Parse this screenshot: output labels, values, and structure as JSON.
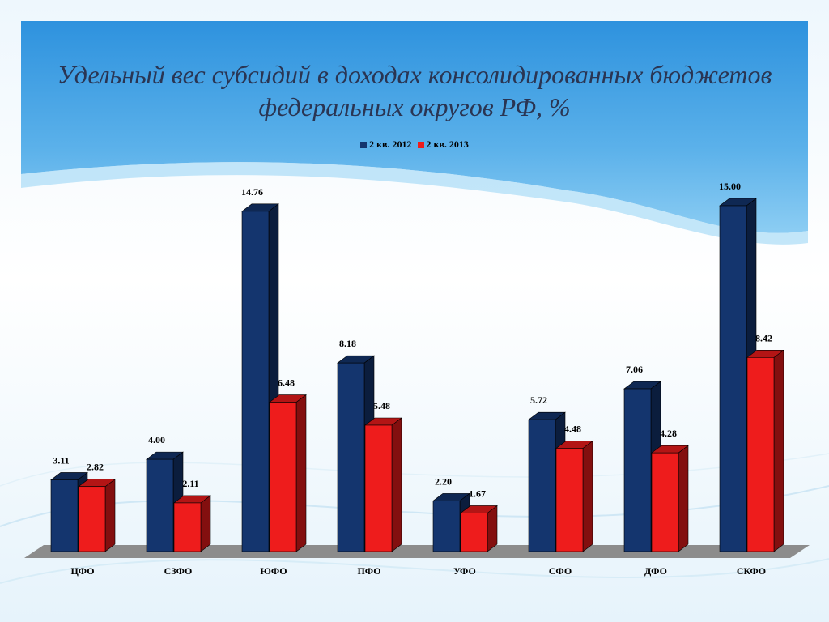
{
  "title": "Удельный вес субсидий в доходах консолидированных бюджетов федеральных округов РФ, %",
  "colors": {
    "series_2012": "#14356e",
    "series_2013": "#ee1c1c",
    "floor": "#8c8c8c",
    "title_text": "#2a3553"
  },
  "chart_data": {
    "type": "bar",
    "title": "Удельный вес субсидий в доходах консолидированных бюджетов федеральных округов РФ, %",
    "categories": [
      "ЦФО",
      "СЗФО",
      "ЮФО",
      "ПФО",
      "УФО",
      "СФО",
      "ДФО",
      "СКФО"
    ],
    "series": [
      {
        "name": "2 кв. 2012",
        "values": [
          3.11,
          4.0,
          14.76,
          8.18,
          2.2,
          5.72,
          7.06,
          15.0
        ],
        "labels": [
          "3.11",
          "4.00",
          "14.76",
          "8.18",
          "2.20",
          "5.72",
          "7.06",
          "15.00"
        ]
      },
      {
        "name": "2 кв. 2013",
        "values": [
          2.82,
          2.11,
          6.48,
          5.48,
          1.67,
          4.48,
          4.28,
          8.42
        ],
        "labels": [
          "2.82",
          "2.11",
          "6.48",
          "5.48",
          "1.67",
          "4.48",
          "4.28",
          "8.42"
        ]
      }
    ],
    "ylim": [
      0,
      15
    ],
    "legend": "top",
    "grid": false,
    "style": "3d-column"
  }
}
